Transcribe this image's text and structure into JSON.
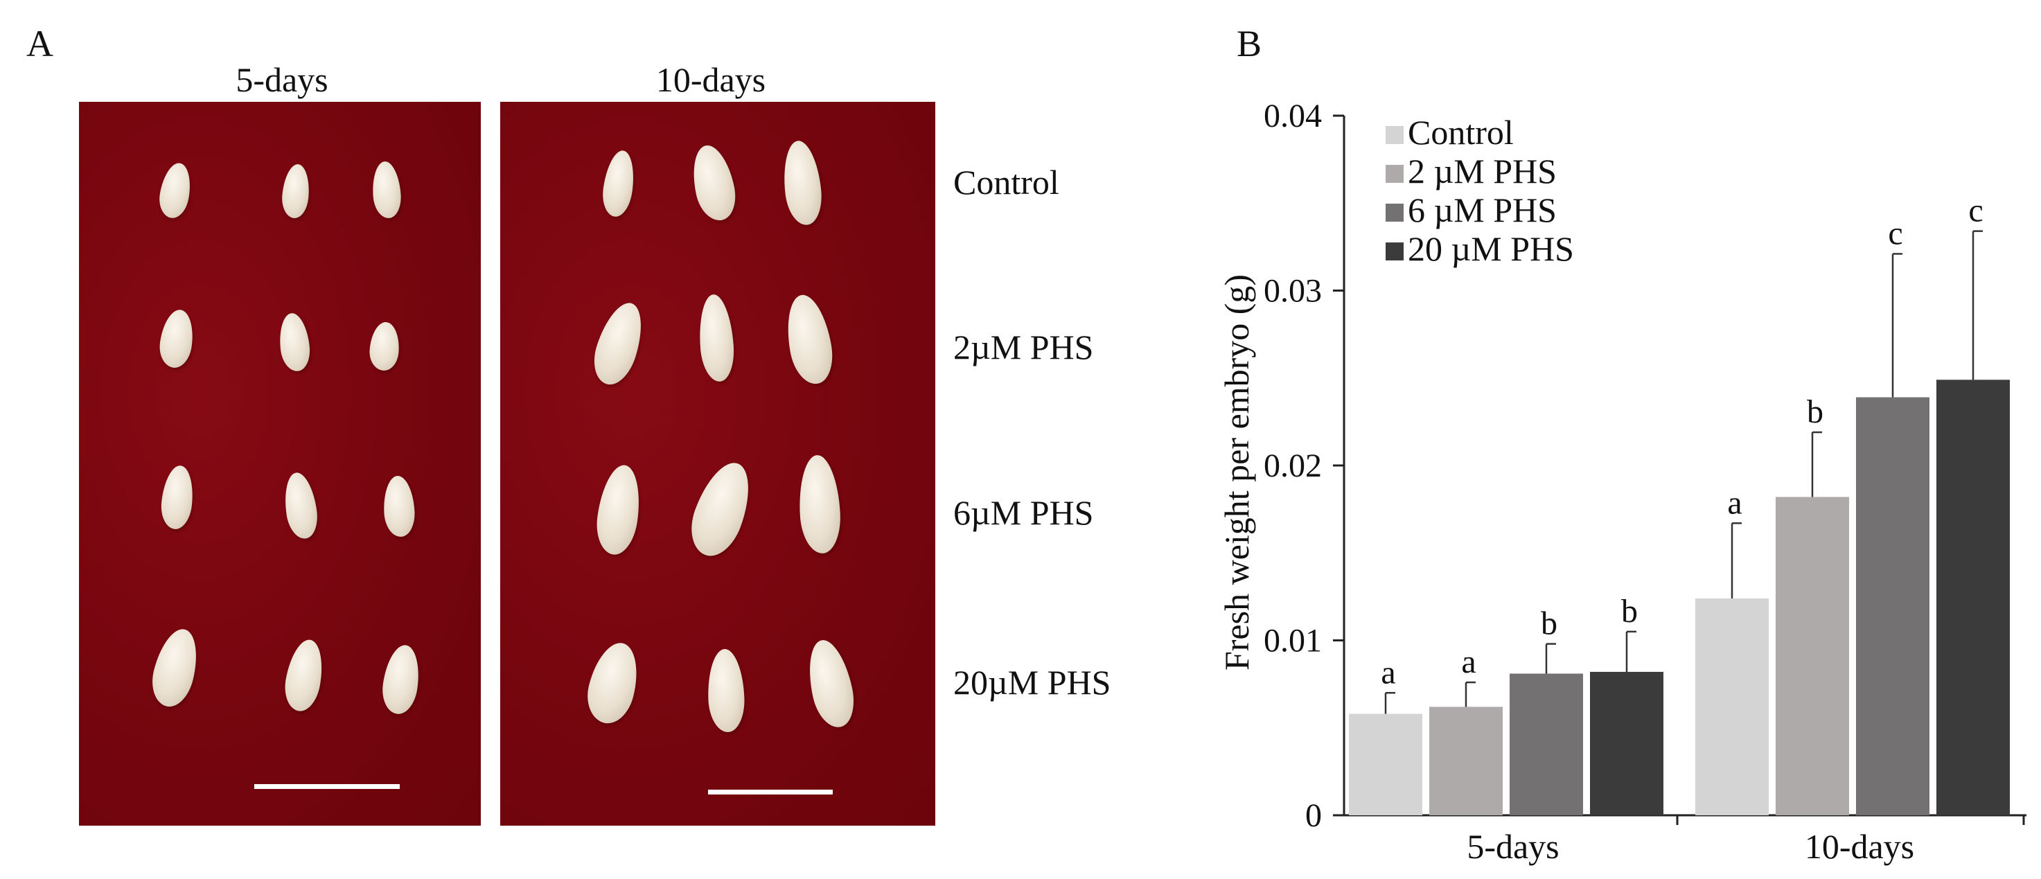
{
  "panel_a": {
    "letter": "A",
    "columns": [
      "5-days",
      "10-days"
    ],
    "row_labels": [
      "Control",
      "2µM PHS",
      "6µM PHS",
      "20µM PHS"
    ],
    "photo_color": "#7a0710",
    "embryo_color": "#efe6d8"
  },
  "panel_b": {
    "letter": "B"
  },
  "chart_data": {
    "type": "bar",
    "title": "",
    "xlabel": "",
    "ylabel": "Fresh weight per embryo (g)",
    "ylim": [
      0,
      0.04
    ],
    "yticks": [
      0,
      0.01,
      0.02,
      0.03,
      0.04
    ],
    "ytick_labels": [
      "0",
      "0.01",
      "0.02",
      "0.03",
      "0.04"
    ],
    "categories": [
      "5-days",
      "10-days"
    ],
    "legend_position": "top-left",
    "series": [
      {
        "name": "Control",
        "color": "#d4d4d4",
        "values": [
          0.0058,
          0.0124
        ],
        "errors": [
          0.0012,
          0.0043
        ],
        "letters": [
          "a",
          "a"
        ]
      },
      {
        "name": "2 µM PHS",
        "color": "#aeaaaa",
        "values": [
          0.0062,
          0.0182
        ],
        "errors": [
          0.0014,
          0.0037
        ],
        "letters": [
          "a",
          "b"
        ]
      },
      {
        "name": "6 µM PHS",
        "color": "#737171",
        "values": [
          0.0081,
          0.0239
        ],
        "errors": [
          0.0017,
          0.0082
        ],
        "letters": [
          "b",
          "c"
        ]
      },
      {
        "name": "20 µM PHS",
        "color": "#3b3b3b",
        "values": [
          0.0082,
          0.0249
        ],
        "errors": [
          0.0023,
          0.0085
        ],
        "letters": [
          "b",
          "c"
        ]
      }
    ]
  }
}
